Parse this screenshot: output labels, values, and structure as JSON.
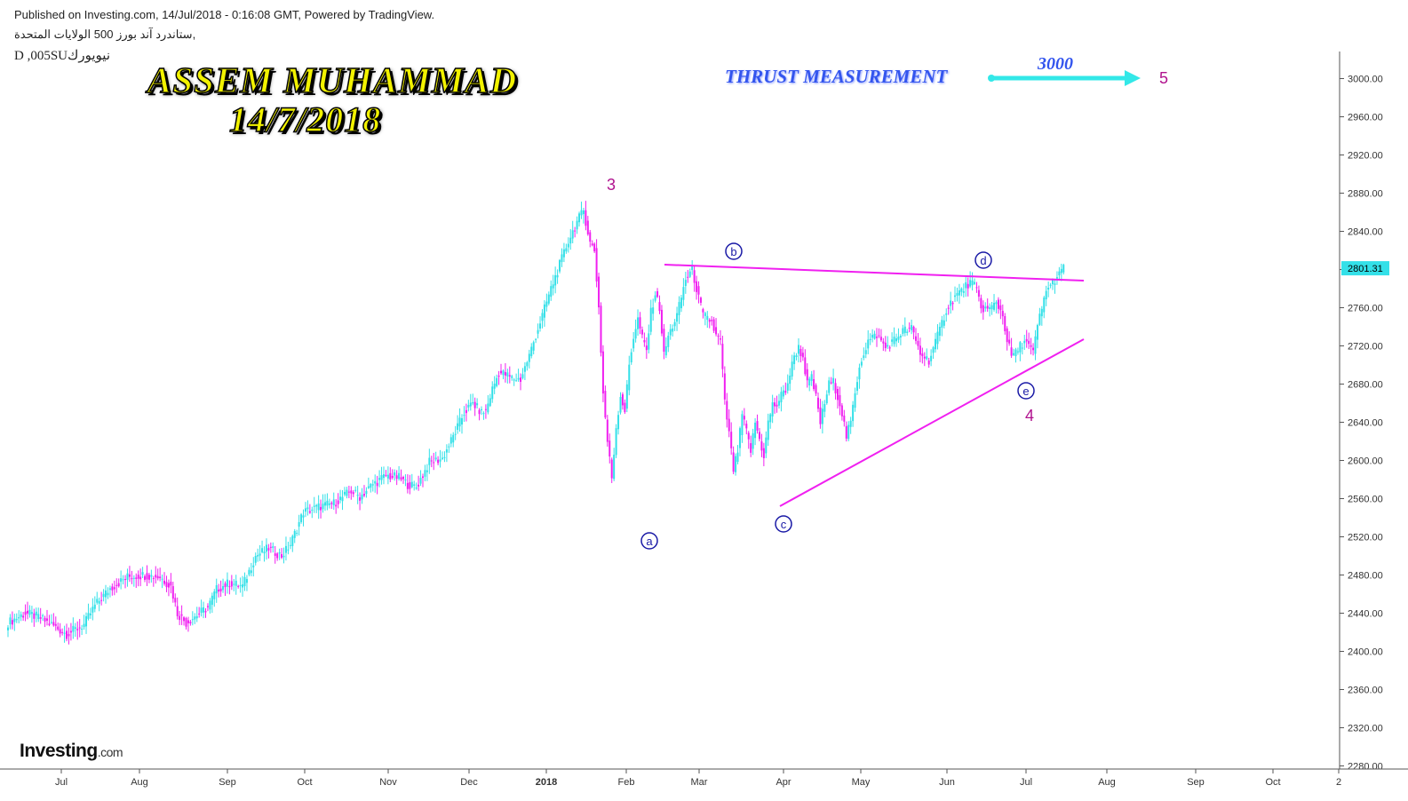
{
  "header": {
    "line1": "Published on Investing.com, 14/Jul/2018 - 0:16:08 GMT, Powered by TradingView.",
    "line2": "ستاندرد آند بورز 500 الولايات المتحدة,",
    "line3": "D ,005SUنيويورك"
  },
  "branding": {
    "author": "ASSEM MUHAMMAD",
    "date": "14/7/2018",
    "logo_main": "Investing",
    "logo_suffix": ".com"
  },
  "annotations": {
    "thrust_label": "THRUST MEASUREMENT",
    "thrust_target": "3000",
    "wave5": "5",
    "wave3": "3",
    "wave4": "4",
    "wave_a": "a",
    "wave_b": "b",
    "wave_c": "c",
    "wave_d": "d",
    "wave_e": "e"
  },
  "colors": {
    "up": "#33e0e8",
    "down": "#f020f0",
    "trendline": "#f020f0",
    "wave_letters": "#1a1aa6",
    "wave_numbers": "#b0128e",
    "arrow": "#33e8e8"
  },
  "chart_data": {
    "type": "candlestick",
    "timeframe": "D",
    "last_price": "2801.31",
    "ylim": [
      2280,
      3020
    ],
    "yticks": [
      "3000.00",
      "2960.00",
      "2920.00",
      "2880.00",
      "2840.00",
      "2800.00",
      "2760.00",
      "2720.00",
      "2680.00",
      "2640.00",
      "2600.00",
      "2560.00",
      "2520.00",
      "2480.00",
      "2440.00",
      "2400.00",
      "2360.00",
      "2320.00",
      "2280.00"
    ],
    "xticks": [
      "Jul",
      "Aug",
      "Sep",
      "Oct",
      "Nov",
      "Dec",
      "2018",
      "Feb",
      "Mar",
      "Apr",
      "May",
      "Jun",
      "Jul",
      "Aug",
      "Sep",
      "Oct",
      "2"
    ],
    "close_path": [
      [
        0,
        2430
      ],
      [
        8,
        2440
      ],
      [
        14,
        2436
      ],
      [
        20,
        2428
      ],
      [
        27,
        2418
      ],
      [
        35,
        2428
      ],
      [
        40,
        2448
      ],
      [
        47,
        2466
      ],
      [
        55,
        2478
      ],
      [
        62,
        2480
      ],
      [
        70,
        2478
      ],
      [
        75,
        2468
      ],
      [
        78,
        2440
      ],
      [
        82,
        2430
      ],
      [
        88,
        2440
      ],
      [
        92,
        2446
      ],
      [
        96,
        2465
      ],
      [
        102,
        2472
      ],
      [
        108,
        2468
      ],
      [
        114,
        2500
      ],
      [
        120,
        2508
      ],
      [
        126,
        2500
      ],
      [
        130,
        2512
      ],
      [
        136,
        2546
      ],
      [
        144,
        2552
      ],
      [
        150,
        2555
      ],
      [
        158,
        2568
      ],
      [
        162,
        2562
      ],
      [
        168,
        2575
      ],
      [
        174,
        2584
      ],
      [
        180,
        2582
      ],
      [
        184,
        2575
      ],
      [
        188,
        2572
      ],
      [
        194,
        2598
      ],
      [
        200,
        2602
      ],
      [
        206,
        2630
      ],
      [
        210,
        2650
      ],
      [
        214,
        2660
      ],
      [
        218,
        2650
      ],
      [
        220,
        2652
      ],
      [
        223,
        2675
      ],
      [
        226,
        2692
      ],
      [
        229,
        2690
      ],
      [
        232,
        2686
      ],
      [
        236,
        2685
      ],
      [
        240,
        2710
      ],
      [
        245,
        2745
      ],
      [
        250,
        2780
      ],
      [
        254,
        2805
      ],
      [
        258,
        2830
      ],
      [
        262,
        2850
      ],
      [
        265,
        2862
      ],
      [
        268,
        2828
      ],
      [
        270,
        2820
      ],
      [
        272,
        2760
      ],
      [
        274,
        2670
      ],
      [
        276,
        2620
      ],
      [
        278,
        2582
      ],
      [
        280,
        2635
      ],
      [
        282,
        2668
      ],
      [
        284,
        2652
      ],
      [
        286,
        2700
      ],
      [
        288,
        2730
      ],
      [
        290,
        2748
      ],
      [
        292,
        2728
      ],
      [
        294,
        2715
      ],
      [
        296,
        2755
      ],
      [
        298,
        2775
      ],
      [
        300,
        2760
      ],
      [
        302,
        2710
      ],
      [
        304,
        2730
      ],
      [
        308,
        2752
      ],
      [
        312,
        2790
      ],
      [
        315,
        2800
      ],
      [
        318,
        2770
      ],
      [
        320,
        2752
      ],
      [
        324,
        2745
      ],
      [
        326,
        2730
      ],
      [
        328,
        2725
      ],
      [
        330,
        2660
      ],
      [
        332,
        2628
      ],
      [
        334,
        2590
      ],
      [
        336,
        2610
      ],
      [
        338,
        2648
      ],
      [
        340,
        2630
      ],
      [
        342,
        2610
      ],
      [
        344,
        2640
      ],
      [
        346,
        2622
      ],
      [
        348,
        2605
      ],
      [
        350,
        2640
      ],
      [
        352,
        2658
      ],
      [
        354,
        2658
      ],
      [
        356,
        2668
      ],
      [
        358,
        2674
      ],
      [
        360,
        2690
      ],
      [
        362,
        2710
      ],
      [
        364,
        2718
      ],
      [
        366,
        2708
      ],
      [
        368,
        2680
      ],
      [
        370,
        2686
      ],
      [
        372,
        2666
      ],
      [
        374,
        2640
      ],
      [
        376,
        2660
      ],
      [
        378,
        2680
      ],
      [
        380,
        2682
      ],
      [
        382,
        2668
      ],
      [
        384,
        2650
      ],
      [
        386,
        2625
      ],
      [
        388,
        2640
      ],
      [
        390,
        2670
      ],
      [
        392,
        2700
      ],
      [
        396,
        2725
      ],
      [
        400,
        2732
      ],
      [
        404,
        2718
      ],
      [
        408,
        2726
      ],
      [
        412,
        2736
      ],
      [
        416,
        2738
      ],
      [
        420,
        2712
      ],
      [
        424,
        2705
      ],
      [
        428,
        2730
      ],
      [
        432,
        2758
      ],
      [
        436,
        2772
      ],
      [
        440,
        2780
      ],
      [
        442,
        2785
      ],
      [
        444,
        2786
      ],
      [
        446,
        2778
      ],
      [
        448,
        2760
      ],
      [
        452,
        2758
      ],
      [
        455,
        2766
      ],
      [
        458,
        2752
      ],
      [
        460,
        2726
      ],
      [
        462,
        2710
      ],
      [
        464,
        2712
      ],
      [
        466,
        2720
      ],
      [
        468,
        2726
      ],
      [
        470,
        2720
      ],
      [
        472,
        2712
      ],
      [
        474,
        2742
      ],
      [
        476,
        2758
      ],
      [
        478,
        2780
      ],
      [
        480,
        2782
      ],
      [
        482,
        2790
      ],
      [
        484,
        2794
      ],
      [
        486,
        2802
      ]
    ]
  }
}
